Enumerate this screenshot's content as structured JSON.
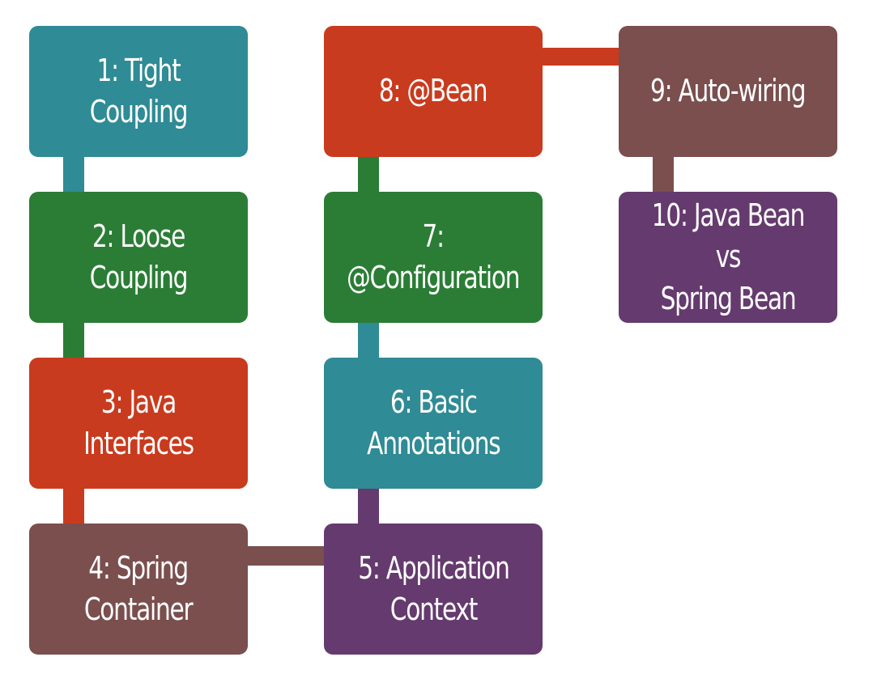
{
  "colors": {
    "teal": "#2f8b95",
    "green": "#2b7d35",
    "red": "#c93b1e",
    "brown": "#7a4f4e",
    "purple": "#653a6e"
  },
  "steps": [
    {
      "label": "1: Tight Coupling",
      "color": "teal"
    },
    {
      "label": "2: Loose Coupling",
      "color": "green"
    },
    {
      "label": "3: Java Interfaces",
      "color": "red"
    },
    {
      "label": "4: Spring\nContainer",
      "color": "brown"
    },
    {
      "label": "5: Application\nContext",
      "color": "purple"
    },
    {
      "label": "6: Basic\nAnnotations",
      "color": "teal"
    },
    {
      "label": "7:\n@Configuration",
      "color": "green"
    },
    {
      "label": "8: @Bean",
      "color": "red"
    },
    {
      "label": "9: Auto-wiring",
      "color": "brown"
    },
    {
      "label": "10: Java Bean vs\nSpring Bean",
      "color": "purple"
    }
  ]
}
